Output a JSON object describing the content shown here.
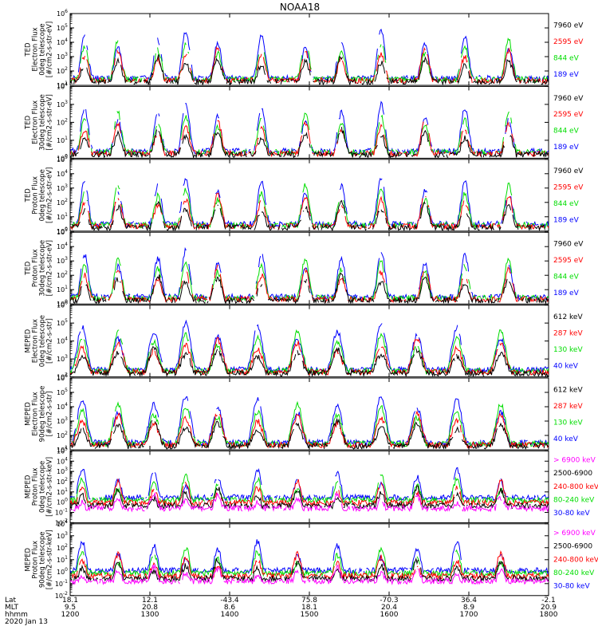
{
  "chart_data": {
    "type": "line",
    "title": "NOAA18",
    "date_label": "2020 Jan 13",
    "panels": [
      {
        "id": "ted-e-0",
        "ylabel_lines": [
          "TED",
          "Electron Flux",
          "0deg telescope",
          "[#/cm2-s-str-eV]"
        ],
        "ylog": [
          1,
          6
        ],
        "series": [
          {
            "name": "7960 eV",
            "color": "#000000"
          },
          {
            "name": "2595 eV",
            "color": "#ff0000"
          },
          {
            "name": "844 eV",
            "color": "#00dd00"
          },
          {
            "name": "189 eV",
            "color": "#0000ff"
          }
        ]
      },
      {
        "id": "ted-e-90",
        "ylabel_lines": [
          "TED",
          "Electron Flux",
          "30deg telescope",
          "[#/cm2-s-str-eV]"
        ],
        "ylog": [
          0,
          4
        ],
        "series": [
          {
            "name": "7960 eV",
            "color": "#000000"
          },
          {
            "name": "2595 eV",
            "color": "#ff0000"
          },
          {
            "name": "844 eV",
            "color": "#00dd00"
          },
          {
            "name": "189 eV",
            "color": "#0000ff"
          }
        ]
      },
      {
        "id": "ted-p-0",
        "ylabel_lines": [
          "TED",
          "Proton Flux",
          "0deg telescope",
          "[#/cm2-s-str-eV]"
        ],
        "ylog": [
          0,
          5
        ],
        "series": [
          {
            "name": "7960 eV",
            "color": "#000000"
          },
          {
            "name": "2595 eV",
            "color": "#ff0000"
          },
          {
            "name": "844 eV",
            "color": "#00dd00"
          },
          {
            "name": "189 eV",
            "color": "#0000ff"
          }
        ]
      },
      {
        "id": "ted-p-90",
        "ylabel_lines": [
          "TED",
          "Proton Flux",
          "30deg telescope",
          "[#/cm2-s-str-eV]"
        ],
        "ylog": [
          0,
          5
        ],
        "series": [
          {
            "name": "7960 eV",
            "color": "#000000"
          },
          {
            "name": "2595 eV",
            "color": "#ff0000"
          },
          {
            "name": "844 eV",
            "color": "#00dd00"
          },
          {
            "name": "189 eV",
            "color": "#0000ff"
          }
        ]
      },
      {
        "id": "meped-e-0",
        "ylabel_lines": [
          "MEPED",
          "Electron Flux",
          "0deg telescope",
          "[#/cm2-s-str]"
        ],
        "ylog": [
          2,
          6
        ],
        "series": [
          {
            "name": "612 keV",
            "color": "#000000"
          },
          {
            "name": "287 keV",
            "color": "#ff0000"
          },
          {
            "name": "130 keV",
            "color": "#00dd00"
          },
          {
            "name": "40 keV",
            "color": "#0000ff"
          }
        ]
      },
      {
        "id": "meped-e-90",
        "ylabel_lines": [
          "MEPED",
          "Electron Flux",
          "90deg telescope",
          "[#/cm2-s-str]"
        ],
        "ylog": [
          1,
          6
        ],
        "series": [
          {
            "name": "612 keV",
            "color": "#000000"
          },
          {
            "name": "287 keV",
            "color": "#ff0000"
          },
          {
            "name": "130 keV",
            "color": "#00dd00"
          },
          {
            "name": "40 keV",
            "color": "#0000ff"
          }
        ]
      },
      {
        "id": "meped-p-0",
        "ylabel_lines": [
          "MEPED",
          "Proton Flux",
          "0deg telescope",
          "[#/cm2-s-str-keV]"
        ],
        "ylog": [
          -2,
          5
        ],
        "series": [
          {
            "name": "> 6900 keV",
            "color": "#ff00ff"
          },
          {
            "name": "2500-6900",
            "color": "#000000"
          },
          {
            "name": "240-800 keV",
            "color": "#ff0000"
          },
          {
            "name": "80-240 keV",
            "color": "#00dd00"
          },
          {
            "name": "30-80 keV",
            "color": "#0000ff"
          }
        ]
      },
      {
        "id": "meped-p-90",
        "ylabel_lines": [
          "MEPED",
          "Proton Flux",
          "90deg telescope",
          "[#/cm2-s-str-keV]"
        ],
        "ylog": [
          -2,
          4
        ],
        "series": [
          {
            "name": "> 6900 keV",
            "color": "#ff00ff"
          },
          {
            "name": "2500-6900",
            "color": "#000000"
          },
          {
            "name": "240-800 keV",
            "color": "#ff0000"
          },
          {
            "name": "80-240 keV",
            "color": "#00dd00"
          },
          {
            "name": "30-80 keV",
            "color": "#0000ff"
          }
        ]
      }
    ],
    "x_axis": {
      "row_labels": [
        "Lat",
        "MLT",
        "hhmm"
      ],
      "ticks": [
        {
          "time": "1200",
          "lat": "18.1",
          "mlt": "9.5"
        },
        {
          "time": "1300",
          "lat": "12.1",
          "mlt": "20.8"
        },
        {
          "time": "1400",
          "lat": "-43.4",
          "mlt": "8.6"
        },
        {
          "time": "1500",
          "lat": "75.8",
          "mlt": "18.1"
        },
        {
          "time": "1600",
          "lat": "-70.3",
          "mlt": "20.4"
        },
        {
          "time": "1700",
          "lat": "36.4",
          "mlt": "8.9"
        },
        {
          "time": "1800",
          "lat": "-2.1",
          "mlt": "20.9"
        }
      ],
      "range_hours": [
        12,
        18
      ]
    }
  }
}
